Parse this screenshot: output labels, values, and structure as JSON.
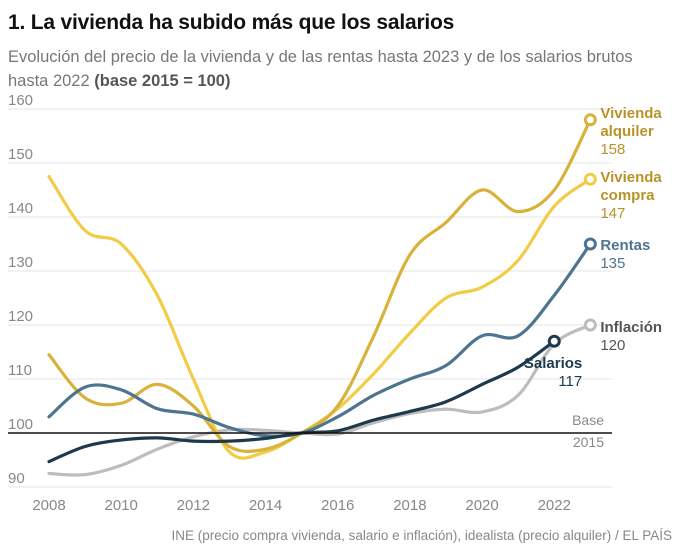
{
  "header": {
    "title": "1. La vivienda ha subido más que los salarios",
    "subtitle": "Evolución del precio de la vivienda y de las rentas hasta 2023 y de los salarios brutos hasta 2022",
    "subtitle_bold": "(base 2015 = 100)"
  },
  "source": "INE (precio compra vivienda, salario e inflación), idealista (precio alquiler) / EL PAÍS",
  "chart_data": {
    "type": "line",
    "title": "1. La vivienda ha subido más que los salarios",
    "subtitle": "Evolución del precio de la vivienda y de las rentas hasta 2023 y de los salarios brutos hasta 2022 (base 2015 = 100)",
    "xlim": [
      2008,
      2023.6
    ],
    "ylim": [
      90,
      160
    ],
    "x_ticks": [
      2008,
      2010,
      2012,
      2014,
      2016,
      2018,
      2020,
      2022
    ],
    "y_ticks": [
      90,
      100,
      110,
      120,
      130,
      140,
      150,
      160
    ],
    "grid": "horizontal",
    "baseline": {
      "value": 100,
      "label_line1": "Base",
      "label_line2": "2015"
    },
    "series": [
      {
        "name_lines": [
          "Vivienda",
          "alquiler"
        ],
        "end_value": "158",
        "color": "#d9b23b",
        "label_color": "#b8932a",
        "x": [
          2008,
          2009,
          2010,
          2011,
          2012,
          2013,
          2014,
          2015,
          2016,
          2017,
          2018,
          2019,
          2020,
          2021,
          2022,
          2023
        ],
        "y": [
          114.5,
          106.5,
          105.5,
          109,
          105,
          97.5,
          97,
          100,
          105,
          118,
          133,
          139,
          145,
          141,
          145,
          158
        ]
      },
      {
        "name_lines": [
          "Vivienda",
          "compra"
        ],
        "end_value": "147",
        "color": "#f2cc46",
        "label_color": "#b8932a",
        "x": [
          2008,
          2009,
          2010,
          2011,
          2012,
          2013,
          2014,
          2015,
          2016,
          2017,
          2018,
          2019,
          2020,
          2021,
          2022,
          2023
        ],
        "y": [
          147.5,
          137.5,
          135,
          125.5,
          110,
          96.5,
          96.5,
          100,
          104.5,
          111,
          118.5,
          125,
          127,
          132,
          142,
          147
        ]
      },
      {
        "name_lines": [
          "Rentas"
        ],
        "end_value": "135",
        "color": "#4e7590",
        "label_color": "#4e7590",
        "x": [
          2008,
          2009,
          2010,
          2011,
          2012,
          2013,
          2014,
          2015,
          2016,
          2017,
          2018,
          2019,
          2020,
          2021,
          2022,
          2023
        ],
        "y": [
          103,
          108.5,
          108,
          104.5,
          103.5,
          101,
          99.5,
          100,
          103,
          107,
          110,
          112.5,
          118,
          118,
          125.5,
          135
        ]
      },
      {
        "name_lines": [
          "Inflación"
        ],
        "end_value": "120",
        "color": "#bdbdbd",
        "label_color": "#555555",
        "x": [
          2008,
          2009,
          2010,
          2011,
          2012,
          2013,
          2014,
          2015,
          2016,
          2017,
          2018,
          2019,
          2020,
          2021,
          2022,
          2023
        ],
        "y": [
          92.5,
          92.3,
          94,
          97,
          99.3,
          100.6,
          100.5,
          100,
          99.8,
          101.9,
          103.6,
          104.4,
          103.9,
          107,
          116.5,
          120
        ]
      },
      {
        "name_lines": [
          "Salarios"
        ],
        "end_value": "117",
        "color": "#1c3a4c",
        "label_color": "#1c3a4c",
        "x": [
          2008,
          2009,
          2010,
          2011,
          2012,
          2013,
          2014,
          2015,
          2016,
          2017,
          2018,
          2019,
          2020,
          2021,
          2022
        ],
        "y": [
          94.7,
          97.5,
          98.7,
          99.1,
          98.5,
          98.5,
          99,
          100,
          100.4,
          102.4,
          104,
          105.8,
          109,
          112.2,
          117
        ]
      }
    ]
  }
}
